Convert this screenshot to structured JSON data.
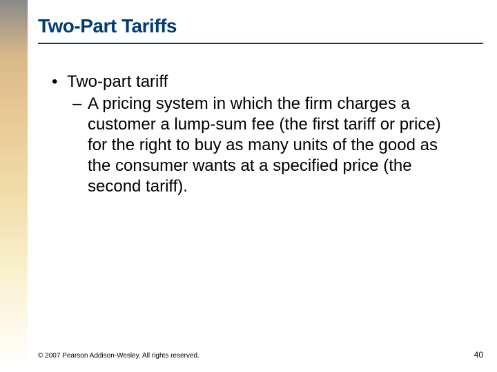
{
  "title": "Two-Part Tariffs",
  "bullet": {
    "label": "Two-part tariff",
    "sub": "A pricing system in which the firm charges a customer a lump-sum fee (the first tariff or price) for the right to buy as many units of the good as the consumer wants at a specified price (the second tariff)."
  },
  "footer": {
    "copyright": "© 2007 Pearson Addison-Wesley. All rights reserved.",
    "page": "40"
  },
  "colors": {
    "title_color": "#003b73",
    "text_color": "#000000",
    "background": "#ffffff"
  }
}
